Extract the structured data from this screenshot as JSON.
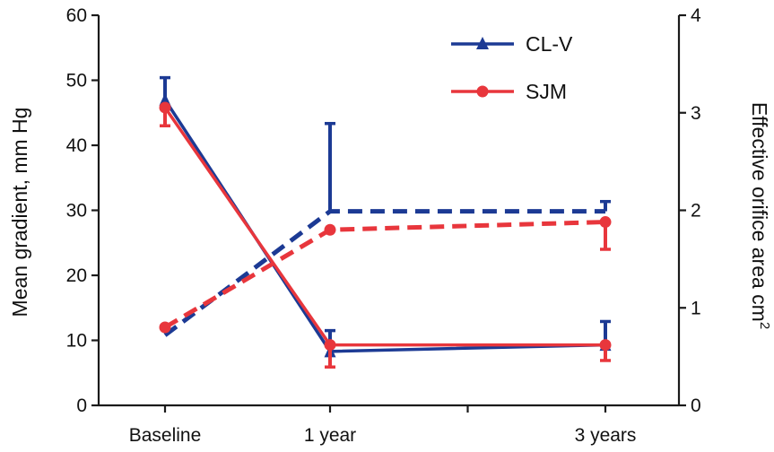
{
  "chart_data": {
    "type": "line",
    "title": "",
    "categories": [
      "Baseline",
      "1 year",
      "3 years"
    ],
    "x": [
      0,
      1,
      3
    ],
    "ylabel_left": "Mean gradient, mm Hg",
    "ylabel_right": "Effective orifice area cm",
    "ylabel_right_superscript": "2",
    "ylim_left": [
      0,
      60
    ],
    "yticks_left": [
      "0",
      "10",
      "20",
      "30",
      "40",
      "50",
      "60"
    ],
    "ylim_right": [
      0,
      4
    ],
    "yticks_right": [
      "0",
      "1",
      "2",
      "3",
      "4"
    ],
    "grid": false,
    "legend": {
      "placement": "top-center",
      "entries": [
        {
          "label": "CL-V",
          "marker": "triangle",
          "color": "#1c3a94"
        },
        {
          "label": "SJM",
          "marker": "circle",
          "color": "#e8363c"
        }
      ]
    },
    "series": [
      {
        "name": "CL-V",
        "metric": "mean gradient",
        "axis": "left",
        "style": "solid",
        "marker": "triangle",
        "color": "#1c3a94",
        "values": [
          47,
          8.3,
          9.3
        ],
        "err_plus": [
          3.4,
          3.2,
          3.6
        ],
        "err_minus": [
          0,
          0,
          0
        ]
      },
      {
        "name": "SJM",
        "metric": "mean gradient",
        "axis": "left",
        "style": "solid",
        "marker": "circle",
        "color": "#e8363c",
        "values": [
          45.8,
          9.3,
          9.3
        ],
        "err_plus": [
          0,
          0,
          0
        ],
        "err_minus": [
          2.8,
          3.4,
          2.4
        ]
      },
      {
        "name": "CL-V",
        "metric": "effective orifice area",
        "axis": "right",
        "style": "dashed",
        "marker": "none",
        "color": "#1c3a94",
        "values": [
          0.72,
          1.99,
          1.99
        ],
        "err_plus": [
          0,
          0.9,
          0.1
        ],
        "err_minus": [
          0,
          0,
          0
        ]
      },
      {
        "name": "SJM",
        "metric": "effective orifice area",
        "axis": "right",
        "style": "dashed",
        "marker": "circle",
        "color": "#e8363c",
        "values": [
          0.8,
          1.8,
          1.88
        ],
        "err_plus": [
          0,
          0,
          0
        ],
        "err_minus": [
          0,
          0,
          0.28
        ]
      }
    ]
  }
}
